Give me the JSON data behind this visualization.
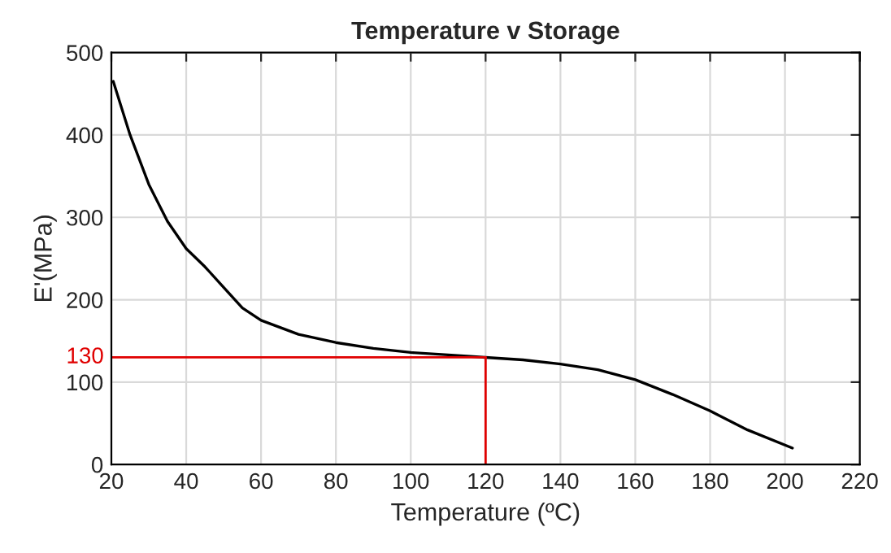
{
  "chart_data": {
    "type": "line",
    "title": "Temperature v Storage",
    "xlabel": "Temperature (ºC)",
    "ylabel": "E'(MPa)",
    "x": [
      20.5,
      25,
      30,
      35,
      40,
      45,
      50,
      55,
      60,
      70,
      80,
      90,
      100,
      110,
      120,
      130,
      140,
      150,
      160,
      170,
      180,
      190,
      202
    ],
    "series": [
      {
        "color": "#000000",
        "values": [
          465,
          400,
          340,
          295,
          262,
          240,
          215,
          190,
          175,
          158,
          148,
          141,
          136,
          133,
          130,
          127,
          122,
          115,
          103,
          85,
          65,
          42,
          20
        ]
      }
    ],
    "xlim": [
      20,
      220
    ],
    "xticks": [
      20,
      40,
      60,
      80,
      100,
      120,
      140,
      160,
      180,
      200,
      220
    ],
    "ylim": [
      0,
      500
    ],
    "yticks": [
      0,
      100,
      200,
      300,
      400,
      500
    ],
    "grid": true,
    "marker": "none",
    "line_style": "solid",
    "legend": false,
    "ref_lines": [
      {
        "axis": "y",
        "value": 130,
        "label": "130",
        "color": "#e00000"
      },
      {
        "axis": "x",
        "value": 120,
        "label": null,
        "color": "#e00000"
      }
    ]
  }
}
